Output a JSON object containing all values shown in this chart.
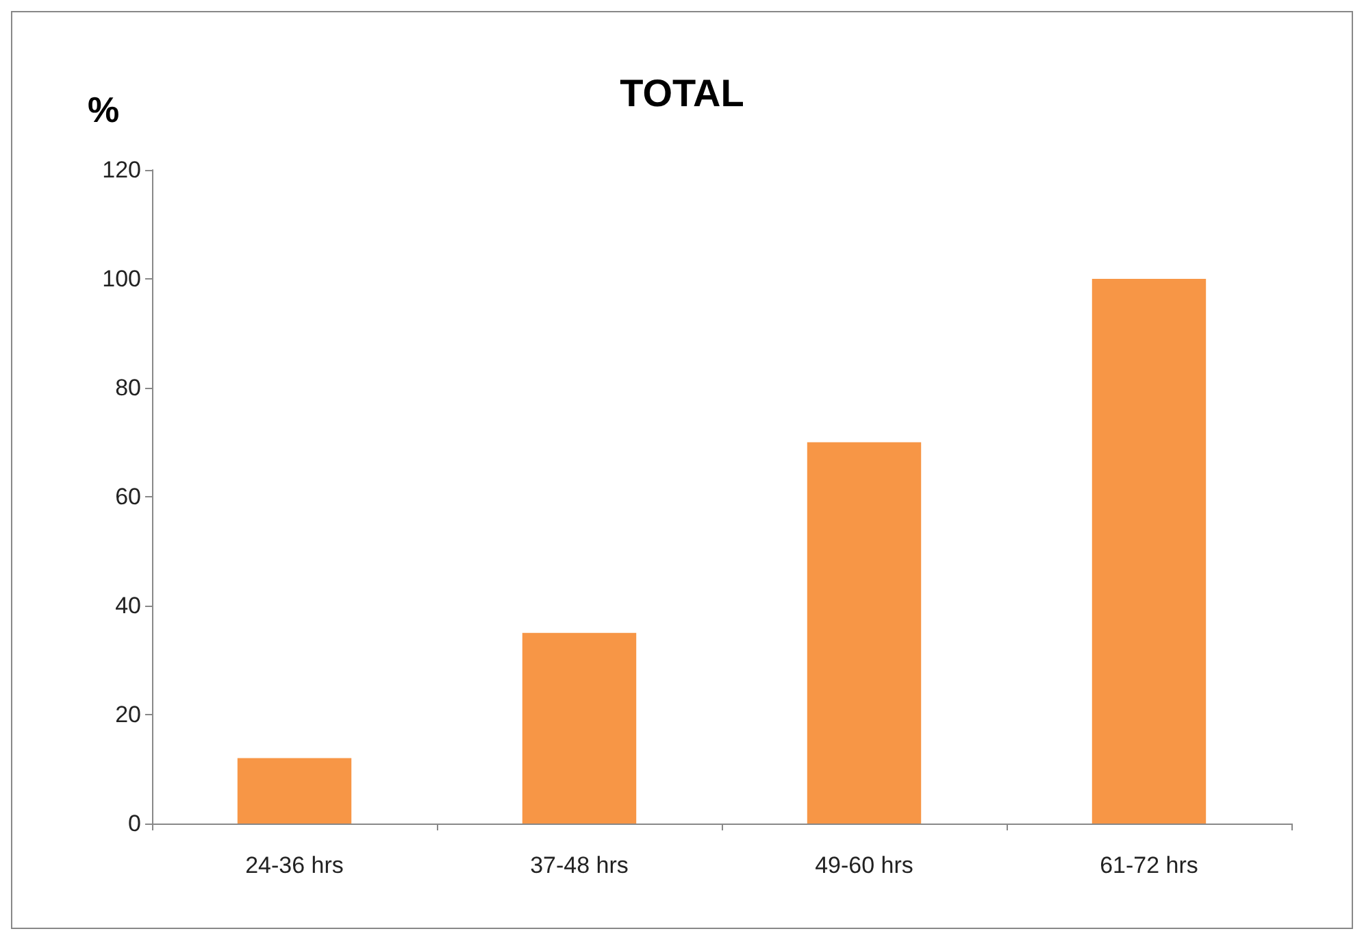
{
  "chart_data": {
    "type": "bar",
    "title": "TOTAL",
    "ylabel": "%",
    "categories": [
      "24-36 hrs",
      "37-48 hrs",
      "49-60 hrs",
      "61-72 hrs"
    ],
    "values": [
      12,
      35,
      70,
      100
    ],
    "color": "#f79646",
    "ylim": [
      0,
      120
    ],
    "yticks": [
      0,
      20,
      40,
      60,
      80,
      100,
      120
    ],
    "grid": false
  }
}
